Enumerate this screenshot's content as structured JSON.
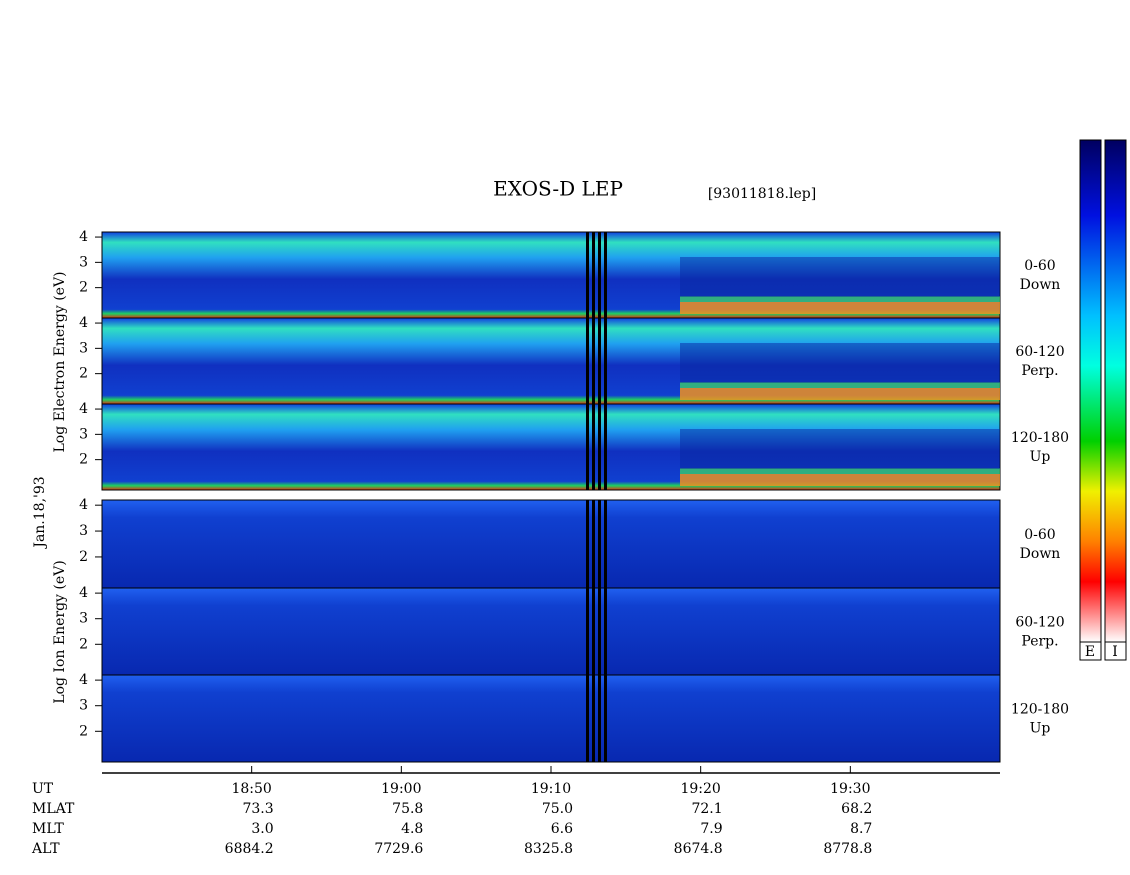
{
  "chart_data": {
    "type": "spectrogram",
    "title": "EXOS-D LEP",
    "file": "[93011818.lep]",
    "xlim": [
      "18:40",
      "19:40"
    ],
    "xticks": [
      "18:50",
      "19:00",
      "19:10",
      "19:20",
      "19:30"
    ],
    "group_labels": [
      "Log Electron Energy (eV)",
      "Log Ion Energy (eV)"
    ],
    "date": "Jan.18,'93",
    "panels": [
      {
        "group": 0,
        "angle": "0-60",
        "direction": "Down",
        "ylim": [
          0.8,
          4.2
        ],
        "yticks": [
          2,
          3,
          4
        ]
      },
      {
        "group": 0,
        "angle": "60-120",
        "direction": "Perp.",
        "ylim": [
          0.8,
          4.2
        ],
        "yticks": [
          2,
          3,
          4
        ]
      },
      {
        "group": 0,
        "angle": "120-180",
        "direction": "Up",
        "ylim": [
          0.8,
          4.2
        ],
        "yticks": [
          2,
          3,
          4
        ]
      },
      {
        "group": 1,
        "angle": "0-60",
        "direction": "Down",
        "ylim": [
          0.8,
          4.2
        ],
        "yticks": [
          2,
          3,
          4
        ]
      },
      {
        "group": 1,
        "angle": "60-120",
        "direction": "Perp.",
        "ylim": [
          0.8,
          4.2
        ],
        "yticks": [
          2,
          3,
          4
        ]
      },
      {
        "group": 1,
        "angle": "120-180",
        "direction": "Up",
        "ylim": [
          0.8,
          4.2
        ],
        "yticks": [
          2,
          3,
          4
        ]
      }
    ],
    "orbit": {
      "names": [
        "UT",
        "MLAT",
        "MLT",
        "ALT"
      ],
      "rows": {
        "MLAT": [
          "73.3",
          "75.8",
          "75.0",
          "72.1",
          "68.2"
        ],
        "MLT": [
          "3.0",
          "4.8",
          "6.6",
          "7.9",
          "8.7"
        ],
        "ALT": [
          "6884.2",
          "7729.6",
          "8325.8",
          "8674.8",
          "8778.8"
        ]
      }
    },
    "colorbar_labels": [
      "E",
      "I"
    ]
  }
}
